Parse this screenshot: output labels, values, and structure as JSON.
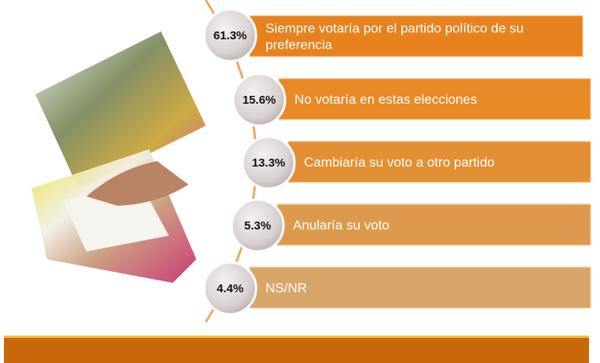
{
  "items": [
    {
      "percent": "61.3%",
      "lines": [
        "Siempre votaría por el partido político de su",
        "preferencia"
      ]
    },
    {
      "percent": "15.6%",
      "lines": [
        "No votaría en estas elecciones"
      ]
    },
    {
      "percent": "13.3%",
      "lines": [
        "Cambiaría su voto a otro partido"
      ]
    },
    {
      "percent": "5.3%",
      "lines": [
        "Anularía su voto"
      ]
    },
    {
      "percent": "4.4%",
      "lines": [
        "NS/NR"
      ]
    }
  ]
}
